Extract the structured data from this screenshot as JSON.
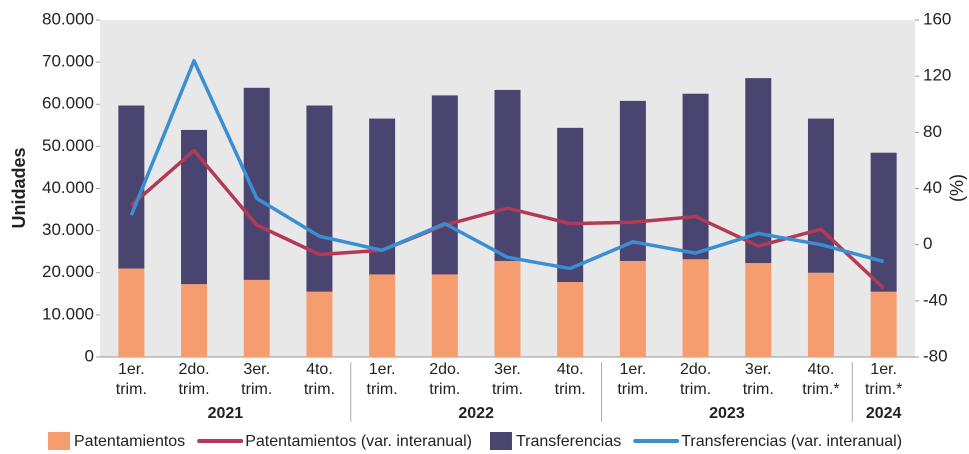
{
  "chart_data": {
    "type": "stacked-bar-line",
    "categories": [
      "1er. trim.",
      "2do. trim.",
      "3er. trim.",
      "4to. trim.",
      "1er. trim.",
      "2do. trim.",
      "3er. trim.",
      "4to. trim.",
      "1er. trim.",
      "2do. trim.",
      "3er. trim.",
      "4to. trim.*",
      "1er. trim.*"
    ],
    "groups": [
      {
        "label": "2021",
        "span": 4
      },
      {
        "label": "2022",
        "span": 4
      },
      {
        "label": "2023",
        "span": 4
      },
      {
        "label": "2024",
        "span": 1
      }
    ],
    "y_label": "Unidades",
    "y2_label": "(%)",
    "series": [
      {
        "name": "Patentamientos",
        "kind": "bar",
        "color": "#f59d6e",
        "values": [
          21000,
          17300,
          18300,
          15500,
          19600,
          19600,
          22800,
          17800,
          22800,
          23200,
          22300,
          20000,
          15500
        ]
      },
      {
        "name": "Patentamientos (var. interanual)",
        "kind": "line",
        "axis": "y2",
        "color": "#b23a56",
        "values": [
          28,
          67,
          14,
          -7,
          -4,
          14,
          26,
          15,
          16,
          20,
          -1,
          11,
          -31
        ]
      },
      {
        "name": "Transferencias",
        "kind": "bar",
        "color": "#4a4470",
        "values": [
          38700,
          36600,
          45600,
          44200,
          37000,
          42500,
          40600,
          36600,
          38000,
          39300,
          43900,
          36600,
          33000
        ]
      },
      {
        "name": "Transferencias (var. interanual)",
        "kind": "line",
        "axis": "y2",
        "color": "#3a8fd2",
        "values": [
          21,
          131,
          33,
          6,
          -4,
          15,
          -9,
          -17,
          2,
          -6,
          8,
          0,
          -12
        ]
      }
    ],
    "ylim": [
      0,
      80000
    ],
    "yticks": [
      {
        "value": 0,
        "label": "0"
      },
      {
        "value": 10000,
        "label": "10.000"
      },
      {
        "value": 20000,
        "label": "20.000"
      },
      {
        "value": 30000,
        "label": "30.000"
      },
      {
        "value": 40000,
        "label": "40.000"
      },
      {
        "value": 50000,
        "label": "50.000"
      },
      {
        "value": 60000,
        "label": "60.000"
      },
      {
        "value": 70000,
        "label": "70.000"
      },
      {
        "value": 80000,
        "label": "80.000"
      }
    ],
    "y2lim": [
      -80,
      160
    ],
    "y2ticks": [
      -80,
      -40,
      0,
      40,
      80,
      120,
      160
    ]
  }
}
